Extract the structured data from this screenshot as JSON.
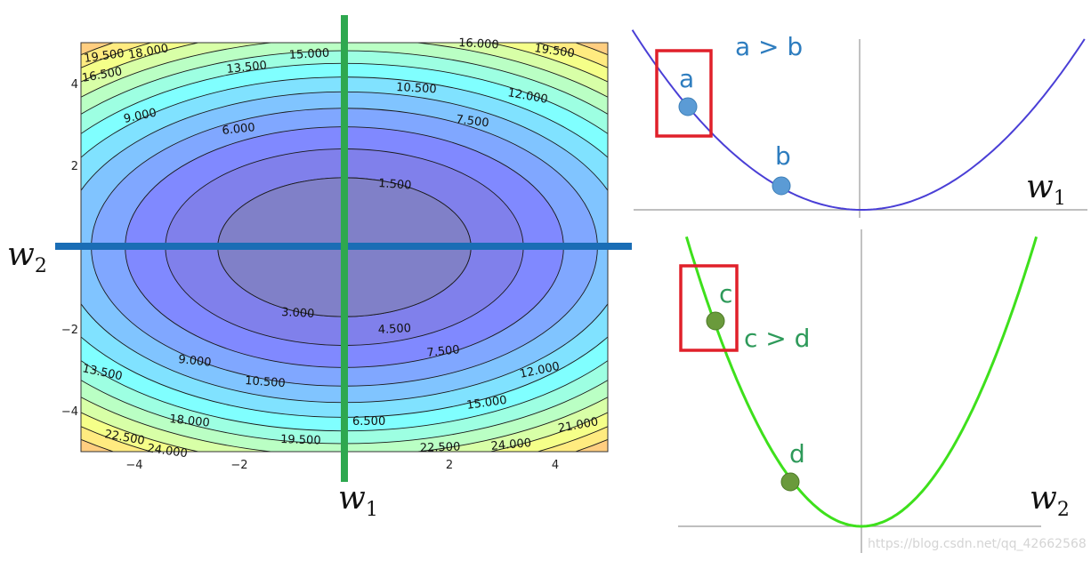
{
  "contour": {
    "labels": [
      "19.500",
      "18.000",
      "15.000",
      "16.000",
      "19.500",
      "16.500",
      "13.500",
      "10.500",
      "12.000",
      "9.000",
      "6.000",
      "7.500",
      "1.500",
      "3.000",
      "4.500",
      "9.000",
      "7.500",
      "13.500",
      "10.500",
      "12.000",
      "15.000",
      "18.000",
      "6.500",
      "21.000",
      "22.500",
      "24.000",
      "19.500",
      "22.500",
      "24.000"
    ],
    "x_ticks": [
      "−4",
      "−2",
      "2",
      "4"
    ],
    "y_ticks": [
      "4",
      "2",
      "−2",
      "−4"
    ],
    "colormap": "jet",
    "vertical_line_color": "#2ea84f",
    "horizontal_line_color": "#1a6db5"
  },
  "axis_labels": {
    "w1": {
      "base": "w",
      "sub": "1"
    },
    "w2": {
      "base": "w",
      "sub": "2"
    }
  },
  "top_plot": {
    "curve_color": "#4a3fd6",
    "point_color": "#5b9bd5",
    "text_color": "#2e7dbf",
    "comparison": "a > b",
    "point_a": "a",
    "point_b": "b",
    "axis_label": {
      "base": "w",
      "sub": "1"
    }
  },
  "bottom_plot": {
    "curve_color": "#3ee01c",
    "point_color": "#6a9a3c",
    "text_color": "#2e9a5a",
    "comparison": "c > d",
    "point_c": "c",
    "point_d": "d",
    "axis_label": {
      "base": "w",
      "sub": "2"
    }
  },
  "highlight_color": "#e0202a",
  "watermark": "https://blog.csdn.net/qq_42662568"
}
